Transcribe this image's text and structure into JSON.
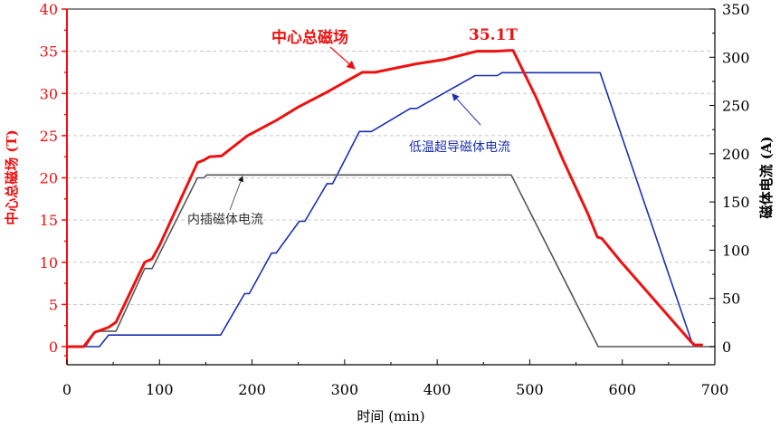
{
  "chart_data": {
    "type": "line",
    "xlabel": "时间 (min)",
    "ylabel": "中心总磁场 (T)",
    "y2label": "磁体电流 (A)",
    "xlim": [
      0,
      700
    ],
    "ylim": [
      0,
      40
    ],
    "y2lim": [
      0,
      350
    ],
    "xticks": [
      0,
      100,
      200,
      300,
      400,
      500,
      600,
      700
    ],
    "yticks": [
      0,
      5,
      10,
      15,
      20,
      25,
      30,
      35,
      40
    ],
    "y2ticks": [
      0,
      50,
      100,
      150,
      200,
      250,
      300,
      350
    ],
    "grid": true,
    "colors": {
      "field": "#ee1111",
      "lts": "#1a2fb0",
      "insert": "#555555",
      "left_axis": "#ee1111",
      "right_axis": "#000000"
    },
    "series": [
      {
        "name": "中心总磁场",
        "axis": "left",
        "x": [
          0,
          18,
          30,
          45,
          53,
          84,
          92,
          100,
          141,
          148,
          154,
          167,
          195,
          226,
          250,
          280,
          319,
          333,
          377,
          407,
          443,
          463,
          478,
          482,
          507,
          536,
          563,
          573,
          578,
          599,
          674,
          678,
          687
        ],
        "y": [
          0,
          0,
          1.7,
          2.3,
          2.9,
          10.0,
          10.4,
          12,
          21.8,
          22.1,
          22.5,
          22.6,
          25.0,
          26.8,
          28.4,
          30.1,
          32.5,
          32.5,
          33.5,
          34.0,
          35.0,
          35.0,
          35.1,
          35.1,
          29.5,
          22.1,
          15.7,
          13.0,
          12.8,
          10.0,
          0.6,
          0.2,
          0.2
        ]
      },
      {
        "name": "低温超导磁体电流",
        "axis": "right",
        "x": [
          0,
          35,
          45,
          166,
          192,
          197,
          221,
          226,
          251,
          257,
          281,
          287,
          316,
          329,
          371,
          378,
          441,
          465,
          470,
          576,
          676,
          687
        ],
        "y": [
          0,
          0,
          12,
          12,
          55,
          55,
          97,
          97,
          130,
          130,
          169,
          169,
          223,
          223,
          247,
          247,
          281,
          281,
          284,
          284,
          2,
          2
        ]
      },
      {
        "name": "内插磁体电流",
        "axis": "right",
        "x": [
          0,
          20,
          31,
          53,
          84,
          92,
          141,
          148,
          151,
          480,
          574,
          700
        ],
        "y": [
          0,
          0,
          16,
          16,
          81,
          81,
          175,
          175,
          178,
          178,
          0,
          0
        ]
      }
    ],
    "annotations": {
      "peak_label": "35.1T"
    }
  }
}
